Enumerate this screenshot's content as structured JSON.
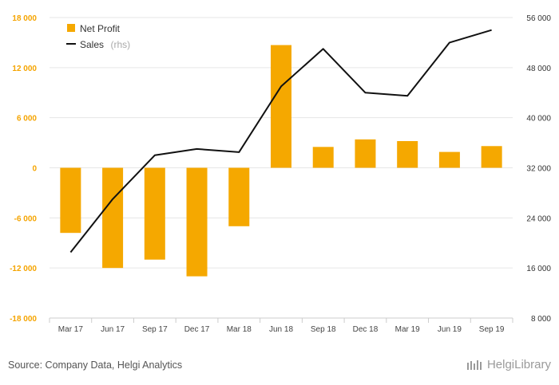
{
  "chart_data": {
    "type": "bar",
    "categories": [
      "Mar 17",
      "Jun 17",
      "Sep 17",
      "Dec 17",
      "Mar 18",
      "Jun 18",
      "Sep 18",
      "Dec 18",
      "Mar 19",
      "Jun 19",
      "Sep 19"
    ],
    "series": [
      {
        "name": "Net Profit",
        "type": "bar",
        "axis": "left",
        "color": "#f5a800",
        "values": [
          -7800,
          -12000,
          -11000,
          -13000,
          -7000,
          14700,
          2500,
          3400,
          3200,
          1900,
          2600
        ]
      },
      {
        "name": "Sales",
        "type": "line",
        "axis": "right",
        "color": "#111111",
        "values": [
          18500,
          27000,
          34000,
          35000,
          34500,
          45000,
          51000,
          44000,
          43500,
          52000,
          54000
        ]
      }
    ],
    "yleft": {
      "min": -18000,
      "max": 18000,
      "ticks": [
        "-18 000",
        "-12 000",
        "-6 000",
        "0",
        "6 000",
        "12 000",
        "18 000"
      ],
      "tick_values": [
        -18000,
        -12000,
        -6000,
        0,
        6000,
        12000,
        18000
      ]
    },
    "yright": {
      "min": 8000,
      "max": 56000,
      "ticks": [
        "8 000",
        "16 000",
        "24 000",
        "32 000",
        "40 000",
        "48 000",
        "56 000"
      ],
      "tick_values": [
        8000,
        16000,
        24000,
        32000,
        40000,
        48000,
        56000
      ]
    },
    "legend": {
      "placement": "top-left",
      "bar_label": "Net Profit",
      "line_label": "Sales",
      "line_suffix": "(rhs)"
    },
    "grid": true
  },
  "footer": {
    "source": "Source: Company Data, Helgi Analytics",
    "brand": "HelgiLibrary"
  }
}
